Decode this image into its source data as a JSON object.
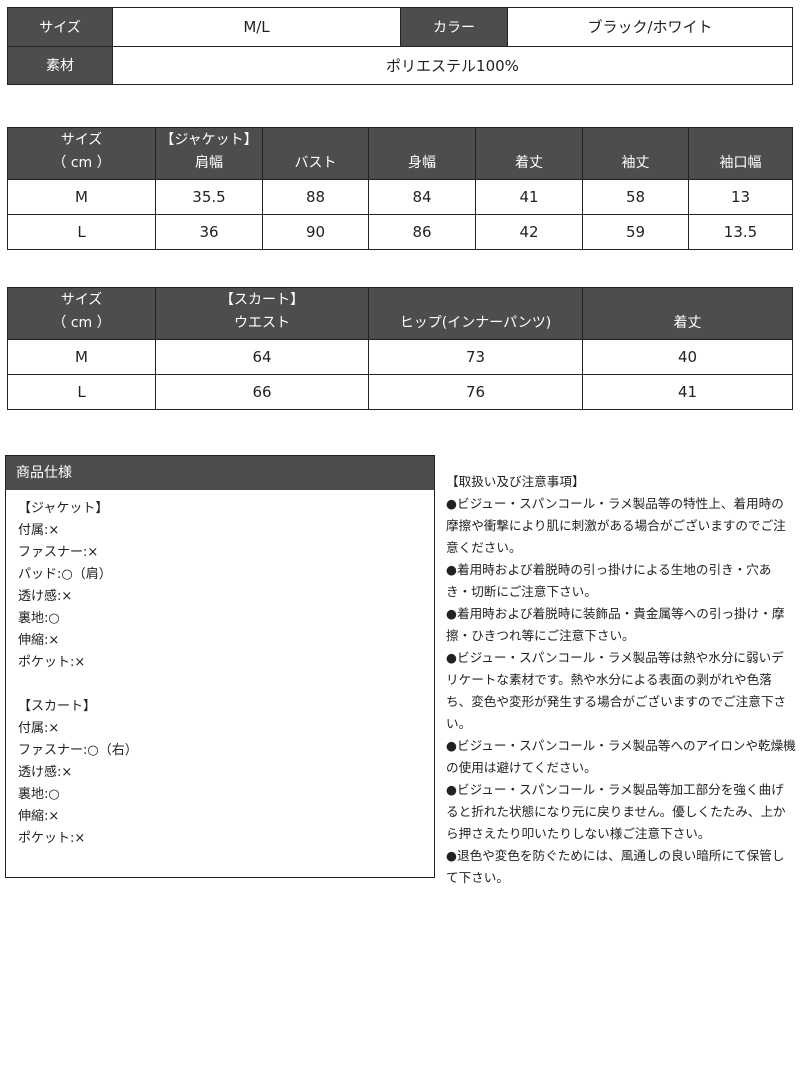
{
  "basic": {
    "size_label": "サイズ",
    "size_value": "M/L",
    "color_label": "カラー",
    "color_value": "ブラック/ホワイト",
    "material_label": "素材",
    "material_value": "ポリエステル100%"
  },
  "jacket_table": {
    "headers": [
      [
        "サイズ",
        "（ cm ）"
      ],
      [
        "【ジャケット】",
        "肩幅"
      ],
      [
        "",
        "バスト"
      ],
      [
        "",
        "身幅"
      ],
      [
        "",
        "着丈"
      ],
      [
        "",
        "袖丈"
      ],
      [
        "",
        "袖口幅"
      ]
    ],
    "rows": [
      [
        "M",
        "35.5",
        "88",
        "84",
        "41",
        "58",
        "13"
      ],
      [
        "L",
        "36",
        "90",
        "86",
        "42",
        "59",
        "13.5"
      ]
    ]
  },
  "skirt_table": {
    "headers": [
      [
        "サイズ",
        "（ cm ）"
      ],
      [
        "【スカート】",
        "ウエスト"
      ],
      [
        "",
        "ヒップ(インナーパンツ)"
      ],
      [
        "",
        "着丈"
      ]
    ],
    "rows": [
      [
        "M",
        "64",
        "73",
        "40"
      ],
      [
        "L",
        "66",
        "76",
        "41"
      ]
    ]
  },
  "spec": {
    "title": "商品仕様",
    "lines": [
      "【ジャケット】",
      "付属:×",
      "ファスナー:×",
      "パッド:○（肩）",
      "透け感:×",
      "裏地:○",
      "伸縮:×",
      "ポケット:×",
      "",
      "【スカート】",
      "付属:×",
      "ファスナー:○（右）",
      "透け感:×",
      "裏地:○",
      "伸縮:×",
      "ポケット:×"
    ]
  },
  "notes": {
    "title": "【取扱い及び注意事項】",
    "items": [
      "●ビジュー・スパンコール・ラメ製品等の特性上、着用時の摩擦や衝撃により肌に刺激がある場合がございますのでご注意ください。",
      "●着用時および着脱時の引っ掛けによる生地の引き・穴あき・切断にご注意下さい。",
      "●着用時および着脱時に装飾品・貴金属等への引っ掛け・摩擦・ひきつれ等にご注意下さい。",
      "●ビジュー・スパンコール・ラメ製品等は熱や水分に弱いデリケートな素材です。熱や水分による表面の剥がれや色落ち、変色や変形が発生する場合がございますのでご注意下さい。",
      "●ビジュー・スパンコール・ラメ製品等へのアイロンや乾燥機の使用は避けてください。",
      "●ビジュー・スパンコール・ラメ製品等加工部分を強く曲げると折れた状態になり元に戻りません。優しくたたみ、上から押さえたり叩いたりしない様ご注意下さい。",
      "●退色や変色を防ぐためには、風通しの良い暗所にて保管して下さい。"
    ]
  },
  "colors": {
    "header_bg": "#4d4d4d",
    "header_text": "#ffffff",
    "border": "#222222"
  }
}
